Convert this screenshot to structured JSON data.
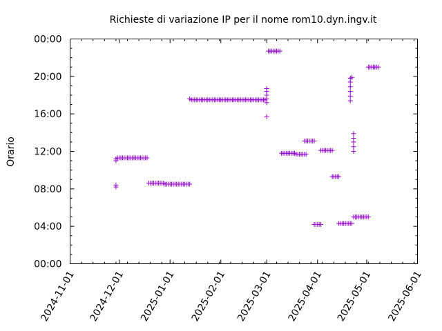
{
  "chart_data": {
    "type": "scatter",
    "title": "Richieste di variazione IP per il nome rom10.dyn.ingv.it",
    "xlabel": "",
    "ylabel": "Orario",
    "marker": "+",
    "colors": {
      "points": "#9400d3"
    },
    "grid": false,
    "xlim": [
      "2024-11-01",
      "2025-06-01"
    ],
    "ylim": [
      0,
      24
    ],
    "x_ticks": [
      "2024-11-01",
      "2024-12-01",
      "2025-01-01",
      "2025-02-01",
      "2025-03-01",
      "2025-04-01",
      "2025-05-01",
      "2025-06-01"
    ],
    "y_ticks": [
      "00:00",
      "04:00",
      "08:00",
      "12:00",
      "16:00",
      "20:00",
      "00:00"
    ],
    "series": [
      {
        "points": [
          [
            "2024-11-29",
            11.2
          ],
          [
            "2024-11-29",
            11.0
          ],
          [
            "2024-11-29",
            8.4
          ],
          [
            "2024-11-29",
            8.2
          ],
          [
            "2024-11-30",
            11.3
          ],
          [
            "2024-12-01",
            11.3
          ],
          [
            "2024-12-02",
            11.3
          ],
          [
            "2024-12-03",
            11.3
          ],
          [
            "2024-12-04",
            11.3
          ],
          [
            "2024-12-05",
            11.3
          ],
          [
            "2024-12-06",
            11.3
          ],
          [
            "2024-12-07",
            11.3
          ],
          [
            "2024-12-08",
            11.3
          ],
          [
            "2024-12-09",
            11.3
          ],
          [
            "2024-12-10",
            11.3
          ],
          [
            "2024-12-11",
            11.3
          ],
          [
            "2024-12-12",
            11.3
          ],
          [
            "2024-12-13",
            11.3
          ],
          [
            "2024-12-14",
            11.3
          ],
          [
            "2024-12-15",
            11.3
          ],
          [
            "2024-12-16",
            11.3
          ],
          [
            "2024-12-17",
            11.3
          ],
          [
            "2024-12-18",
            11.3
          ],
          [
            "2024-12-19",
            8.6
          ],
          [
            "2024-12-20",
            8.6
          ],
          [
            "2024-12-21",
            8.6
          ],
          [
            "2024-12-22",
            8.6
          ],
          [
            "2024-12-23",
            8.6
          ],
          [
            "2024-12-24",
            8.6
          ],
          [
            "2024-12-25",
            8.6
          ],
          [
            "2024-12-26",
            8.6
          ],
          [
            "2024-12-27",
            8.6
          ],
          [
            "2024-12-28",
            8.6
          ],
          [
            "2024-12-29",
            8.5
          ],
          [
            "2024-12-30",
            8.5
          ],
          [
            "2024-12-31",
            8.5
          ],
          [
            "2025-01-01",
            8.5
          ],
          [
            "2025-01-02",
            8.5
          ],
          [
            "2025-01-03",
            8.5
          ],
          [
            "2025-01-04",
            8.5
          ],
          [
            "2025-01-05",
            8.5
          ],
          [
            "2025-01-06",
            8.5
          ],
          [
            "2025-01-07",
            8.5
          ],
          [
            "2025-01-08",
            8.5
          ],
          [
            "2025-01-09",
            8.5
          ],
          [
            "2025-01-10",
            8.5
          ],
          [
            "2025-01-11",
            8.5
          ],
          [
            "2025-01-12",
            8.5
          ],
          [
            "2025-01-13",
            8.5
          ],
          [
            "2025-01-13",
            17.6
          ],
          [
            "2025-01-14",
            17.5
          ],
          [
            "2025-01-15",
            17.5
          ],
          [
            "2025-01-16",
            17.5
          ],
          [
            "2025-01-17",
            17.5
          ],
          [
            "2025-01-18",
            17.5
          ],
          [
            "2025-01-19",
            17.5
          ],
          [
            "2025-01-20",
            17.5
          ],
          [
            "2025-01-21",
            17.5
          ],
          [
            "2025-01-22",
            17.5
          ],
          [
            "2025-01-23",
            17.5
          ],
          [
            "2025-01-24",
            17.5
          ],
          [
            "2025-01-25",
            17.5
          ],
          [
            "2025-01-26",
            17.5
          ],
          [
            "2025-01-27",
            17.5
          ],
          [
            "2025-01-28",
            17.5
          ],
          [
            "2025-01-29",
            17.5
          ],
          [
            "2025-01-30",
            17.5
          ],
          [
            "2025-01-31",
            17.5
          ],
          [
            "2025-02-01",
            17.5
          ],
          [
            "2025-02-02",
            17.5
          ],
          [
            "2025-02-03",
            17.5
          ],
          [
            "2025-02-04",
            17.5
          ],
          [
            "2025-02-05",
            17.5
          ],
          [
            "2025-02-06",
            17.5
          ],
          [
            "2025-02-07",
            17.5
          ],
          [
            "2025-02-08",
            17.5
          ],
          [
            "2025-02-09",
            17.5
          ],
          [
            "2025-02-10",
            17.5
          ],
          [
            "2025-02-11",
            17.5
          ],
          [
            "2025-02-12",
            17.5
          ],
          [
            "2025-02-13",
            17.5
          ],
          [
            "2025-02-14",
            17.5
          ],
          [
            "2025-02-15",
            17.5
          ],
          [
            "2025-02-16",
            17.5
          ],
          [
            "2025-02-17",
            17.5
          ],
          [
            "2025-02-18",
            17.5
          ],
          [
            "2025-02-19",
            17.5
          ],
          [
            "2025-02-20",
            17.5
          ],
          [
            "2025-02-21",
            17.5
          ],
          [
            "2025-02-22",
            17.5
          ],
          [
            "2025-02-23",
            17.5
          ],
          [
            "2025-02-24",
            17.5
          ],
          [
            "2025-02-25",
            17.5
          ],
          [
            "2025-02-26",
            17.5
          ],
          [
            "2025-02-27",
            17.5
          ],
          [
            "2025-02-28",
            17.5
          ],
          [
            "2025-03-01",
            15.7
          ],
          [
            "2025-03-01",
            17.2
          ],
          [
            "2025-03-01",
            17.6
          ],
          [
            "2025-03-01",
            18.0
          ],
          [
            "2025-03-01",
            18.4
          ],
          [
            "2025-03-01",
            18.7
          ],
          [
            "2025-03-02",
            22.7
          ],
          [
            "2025-03-03",
            22.7
          ],
          [
            "2025-03-04",
            22.7
          ],
          [
            "2025-03-05",
            22.7
          ],
          [
            "2025-03-06",
            22.7
          ],
          [
            "2025-03-07",
            22.7
          ],
          [
            "2025-03-08",
            22.7
          ],
          [
            "2025-03-09",
            22.7
          ],
          [
            "2025-03-10",
            11.8
          ],
          [
            "2025-03-11",
            11.8
          ],
          [
            "2025-03-12",
            11.8
          ],
          [
            "2025-03-13",
            11.8
          ],
          [
            "2025-03-14",
            11.8
          ],
          [
            "2025-03-15",
            11.8
          ],
          [
            "2025-03-16",
            11.8
          ],
          [
            "2025-03-17",
            11.8
          ],
          [
            "2025-03-18",
            11.8
          ],
          [
            "2025-03-19",
            11.7
          ],
          [
            "2025-03-20",
            11.7
          ],
          [
            "2025-03-21",
            11.7
          ],
          [
            "2025-03-22",
            11.7
          ],
          [
            "2025-03-23",
            11.7
          ],
          [
            "2025-03-24",
            11.7
          ],
          [
            "2025-03-25",
            11.7
          ],
          [
            "2025-03-24",
            13.1
          ],
          [
            "2025-03-25",
            13.1
          ],
          [
            "2025-03-26",
            13.1
          ],
          [
            "2025-03-27",
            13.1
          ],
          [
            "2025-03-28",
            13.1
          ],
          [
            "2025-03-29",
            13.1
          ],
          [
            "2025-03-30",
            13.1
          ],
          [
            "2025-03-30",
            4.2
          ],
          [
            "2025-03-31",
            4.2
          ],
          [
            "2025-04-01",
            4.2
          ],
          [
            "2025-04-02",
            4.2
          ],
          [
            "2025-04-03",
            4.2
          ],
          [
            "2025-04-03",
            12.1
          ],
          [
            "2025-04-04",
            12.1
          ],
          [
            "2025-04-05",
            12.1
          ],
          [
            "2025-04-06",
            12.1
          ],
          [
            "2025-04-07",
            12.1
          ],
          [
            "2025-04-08",
            12.1
          ],
          [
            "2025-04-09",
            12.1
          ],
          [
            "2025-04-10",
            12.1
          ],
          [
            "2025-04-10",
            9.3
          ],
          [
            "2025-04-11",
            9.3
          ],
          [
            "2025-04-12",
            9.3
          ],
          [
            "2025-04-13",
            9.3
          ],
          [
            "2025-04-14",
            9.3
          ],
          [
            "2025-04-14",
            4.3
          ],
          [
            "2025-04-15",
            4.3
          ],
          [
            "2025-04-16",
            4.3
          ],
          [
            "2025-04-17",
            4.3
          ],
          [
            "2025-04-18",
            4.3
          ],
          [
            "2025-04-19",
            4.3
          ],
          [
            "2025-04-20",
            4.3
          ],
          [
            "2025-04-21",
            4.3
          ],
          [
            "2025-04-22",
            4.3
          ],
          [
            "2025-04-21",
            17.4
          ],
          [
            "2025-04-21",
            17.9
          ],
          [
            "2025-04-21",
            18.4
          ],
          [
            "2025-04-21",
            18.9
          ],
          [
            "2025-04-21",
            19.4
          ],
          [
            "2025-04-21",
            19.8
          ],
          [
            "2025-04-22",
            19.9
          ],
          [
            "2025-04-23",
            12.0
          ],
          [
            "2025-04-23",
            12.5
          ],
          [
            "2025-04-23",
            13.0
          ],
          [
            "2025-04-23",
            13.4
          ],
          [
            "2025-04-23",
            13.9
          ],
          [
            "2025-04-23",
            5.0
          ],
          [
            "2025-04-24",
            5.0
          ],
          [
            "2025-04-25",
            5.0
          ],
          [
            "2025-04-26",
            5.0
          ],
          [
            "2025-04-27",
            5.0
          ],
          [
            "2025-04-28",
            5.0
          ],
          [
            "2025-04-29",
            5.0
          ],
          [
            "2025-04-30",
            5.0
          ],
          [
            "2025-05-01",
            5.0
          ],
          [
            "2025-05-02",
            5.0
          ],
          [
            "2025-05-02",
            21.0
          ],
          [
            "2025-05-03",
            21.0
          ],
          [
            "2025-05-04",
            21.0
          ],
          [
            "2025-05-05",
            21.0
          ],
          [
            "2025-05-06",
            21.0
          ],
          [
            "2025-05-07",
            21.0
          ],
          [
            "2025-05-08",
            21.0
          ]
        ]
      }
    ]
  }
}
